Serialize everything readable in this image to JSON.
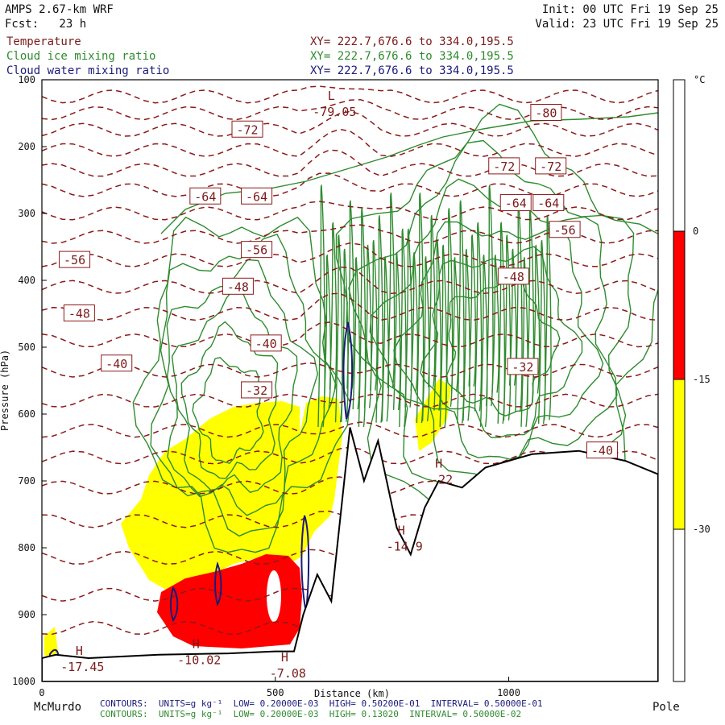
{
  "header": {
    "model": "AMPS 2.67-km WRF",
    "forecast": "Fcst:   23 h",
    "init": "Init: 00 UTC Fri 19 Sep 25",
    "valid": "Valid: 23 UTC Fri 19 Sep 25",
    "legend": [
      {
        "name": "Temperature",
        "xy": "XY= 222.7,676.6 to 334.0,195.5",
        "color": "#7a1a1a"
      },
      {
        "name": "Cloud ice mixing ratio",
        "xy": "XY= 222.7,676.6 to 334.0,195.5",
        "color": "#2e8b2e"
      },
      {
        "name": "Cloud water mixing ratio",
        "xy": "XY= 222.7,676.6 to 334.0,195.5",
        "color": "#1a1a7a"
      }
    ]
  },
  "chart_data": {
    "type": "vertical cross-section (contour)",
    "ylabel": "Pressure (hPa)",
    "xlabel": "Distance (km)",
    "ylim": [
      1000,
      100
    ],
    "xlim": [
      0,
      1320
    ],
    "y_ticks": [
      100,
      200,
      300,
      400,
      500,
      600,
      700,
      800,
      900,
      1000
    ],
    "x_ticks": [
      0,
      500,
      1000
    ],
    "x_endpoints": {
      "left": "McMurdo",
      "right": "Pole"
    },
    "colorbar": {
      "unit": "°C",
      "levels": [
        "0",
        "-15",
        "-30"
      ],
      "bands": [
        {
          "range": "above 0",
          "color": "#ffffff"
        },
        {
          "range": "0 to -15",
          "color": "#ff0000"
        },
        {
          "range": "-15 to -30",
          "color": "#ffff00"
        },
        {
          "range": "below -30",
          "color": "#ffffff"
        }
      ]
    },
    "temperature_labels": [
      {
        "text": "-80",
        "x_km": 1080,
        "p": 150
      },
      {
        "text": "-72",
        "x_km": 440,
        "p": 175
      },
      {
        "text": "-72",
        "x_km": 990,
        "p": 230
      },
      {
        "text": "-72",
        "x_km": 1090,
        "p": 230
      },
      {
        "text": "-64",
        "x_km": 350,
        "p": 275
      },
      {
        "text": "-64",
        "x_km": 460,
        "p": 275
      },
      {
        "text": "-64",
        "x_km": 1015,
        "p": 285
      },
      {
        "text": "-64",
        "x_km": 1085,
        "p": 285
      },
      {
        "text": "-56",
        "x_km": 70,
        "p": 370
      },
      {
        "text": "-56",
        "x_km": 460,
        "p": 355
      },
      {
        "text": "-56",
        "x_km": 1120,
        "p": 325
      },
      {
        "text": "-48",
        "x_km": 80,
        "p": 450
      },
      {
        "text": "-48",
        "x_km": 420,
        "p": 410
      },
      {
        "text": "-48",
        "x_km": 1010,
        "p": 395
      },
      {
        "text": "-40",
        "x_km": 160,
        "p": 525
      },
      {
        "text": "-40",
        "x_km": 480,
        "p": 495
      },
      {
        "text": "-32",
        "x_km": 460,
        "p": 565
      },
      {
        "text": "-32",
        "x_km": 1030,
        "p": 530
      },
      {
        "text": "-40",
        "x_km": 1200,
        "p": 655
      }
    ],
    "extrema": [
      {
        "kind": "L",
        "value": "-79.05",
        "x_km": 620,
        "p": 130
      },
      {
        "kind": "H",
        "value": "-22",
        "x_km": 850,
        "p": 680
      },
      {
        "kind": "H",
        "value": "-14.9",
        "x_km": 770,
        "p": 780
      },
      {
        "kind": "H",
        "value": "-17.45",
        "x_km": 80,
        "p": 960
      },
      {
        "kind": "H",
        "value": "-10.02",
        "x_km": 330,
        "p": 950
      },
      {
        "kind": "H",
        "value": "-7.08",
        "x_km": 520,
        "p": 970
      }
    ],
    "terrain_profile": [
      {
        "x_km": 0,
        "p": 965
      },
      {
        "x_km": 30,
        "p": 960
      },
      {
        "x_km": 100,
        "p": 965
      },
      {
        "x_km": 250,
        "p": 960
      },
      {
        "x_km": 400,
        "p": 958
      },
      {
        "x_km": 500,
        "p": 955
      },
      {
        "x_km": 540,
        "p": 955
      },
      {
        "x_km": 560,
        "p": 900
      },
      {
        "x_km": 590,
        "p": 840
      },
      {
        "x_km": 620,
        "p": 880
      },
      {
        "x_km": 660,
        "p": 620
      },
      {
        "x_km": 690,
        "p": 700
      },
      {
        "x_km": 720,
        "p": 640
      },
      {
        "x_km": 760,
        "p": 770
      },
      {
        "x_km": 790,
        "p": 810
      },
      {
        "x_km": 820,
        "p": 740
      },
      {
        "x_km": 850,
        "p": 700
      },
      {
        "x_km": 900,
        "p": 710
      },
      {
        "x_km": 950,
        "p": 680
      },
      {
        "x_km": 1050,
        "p": 660
      },
      {
        "x_km": 1150,
        "p": 655
      },
      {
        "x_km": 1250,
        "p": 670
      },
      {
        "x_km": 1320,
        "p": 690
      }
    ],
    "contour_info": [
      "CONTOURS:  UNITS=g kg⁻¹  LOW= 0.20000E-03  HIGH= 0.50200E-01  INTERVAL= 0.50000E-01",
      "CONTOURS:  UNITS=g kg⁻¹  LOW= 0.20000E-03  HIGH= 0.13020  INTERVAL= 0.50000E-02"
    ]
  }
}
